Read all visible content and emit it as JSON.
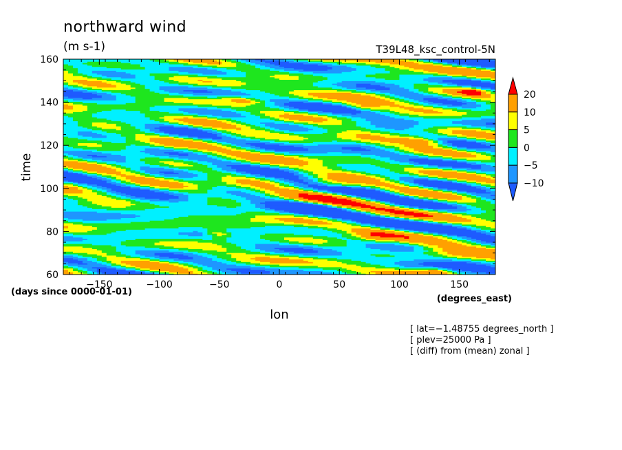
{
  "chart_data": {
    "type": "heatmap",
    "title": "northward wind",
    "subtitle": "(m s-1)",
    "case_name": "T39L48_ksc_control-5N",
    "xlabel": "lon",
    "ylabel": "time",
    "x_units": "(degrees_east)",
    "y_units": "(days since 0000-01-01)",
    "xlim": [
      -180,
      180
    ],
    "ylim": [
      60,
      160
    ],
    "x_ticks": [
      -150,
      -100,
      -50,
      0,
      50,
      100,
      150
    ],
    "x_tick_labels": [
      "−150",
      "−100",
      "−50",
      "0",
      "50",
      "100",
      "150"
    ],
    "y_ticks": [
      60,
      80,
      100,
      120,
      140,
      160
    ],
    "y_tick_labels": [
      "60",
      "80",
      "100",
      "120",
      "140",
      "160"
    ],
    "colorbar": {
      "levels": [
        -10,
        -5,
        0,
        5,
        10,
        20
      ],
      "level_labels": [
        "−10",
        "−5",
        "0",
        "5",
        "10",
        "20"
      ],
      "colors": [
        "#1e5bff",
        "#1e96ff",
        "#00f0ff",
        "#1ee61e",
        "#ffff00",
        "#ffa000",
        "#ff0000"
      ],
      "extend": "both"
    },
    "info_lines": [
      "[ lat=−1.48755 degrees_north ]",
      "[ plev=25000 Pa ]",
      "[ (diff) from (mean) zonal ]"
    ]
  }
}
